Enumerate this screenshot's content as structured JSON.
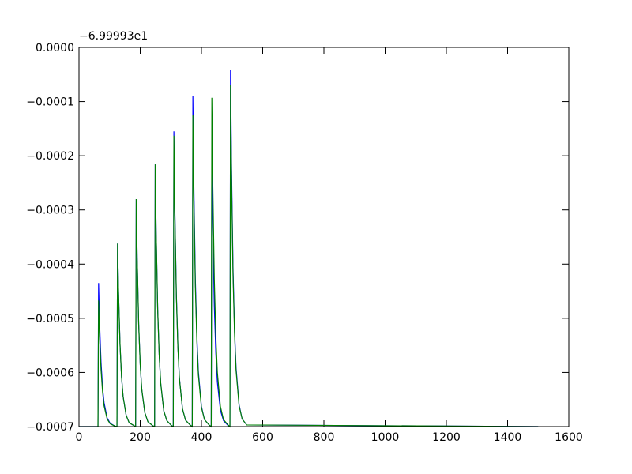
{
  "chart_data": {
    "type": "line",
    "offset_label": "−6.99993e1",
    "x": [
      0,
      62,
      64,
      67,
      72,
      77,
      82,
      92,
      102,
      117,
      124,
      126,
      129,
      134,
      139,
      144,
      154,
      164,
      179,
      185,
      187,
      190,
      195,
      200,
      205,
      215,
      225,
      240,
      247,
      249,
      252,
      257,
      262,
      267,
      277,
      287,
      302,
      308,
      310,
      313,
      318,
      323,
      328,
      338,
      348,
      363,
      370,
      372,
      375,
      380,
      385,
      390,
      400,
      410,
      425,
      432,
      434,
      437,
      442,
      447,
      452,
      462,
      472,
      487,
      493,
      495,
      498,
      503,
      508,
      513,
      523,
      533,
      548,
      1500
    ],
    "series": [
      {
        "color": "#0000ff",
        "values": [
          -0.0007,
          -0.0007,
          -0.000435,
          -0.000504,
          -0.000581,
          -0.000628,
          -0.000656,
          -0.000684,
          -0.000694,
          -0.000699,
          -0.0007,
          -0.000362,
          -0.00045,
          -0.000548,
          -0.000608,
          -0.000644,
          -0.000679,
          -0.000693,
          -0.000698,
          -0.0007,
          -0.00028,
          -0.000389,
          -0.000511,
          -0.000585,
          -0.000631,
          -0.000674,
          -0.000691,
          -0.000698,
          -0.0007,
          -0.000216,
          -0.000341,
          -0.000483,
          -0.000568,
          -0.00062,
          -0.000671,
          -0.000689,
          -0.000698,
          -0.0007,
          -0.000155,
          -0.000296,
          -0.000455,
          -0.000551,
          -0.00061,
          -0.000667,
          -0.000688,
          -0.000697,
          -0.0007,
          -9e-05,
          -0.000248,
          -0.000426,
          -0.000533,
          -0.000599,
          -0.000663,
          -0.000687,
          -0.000697,
          -0.0007,
          -0.000204,
          -0.000332,
          -0.000477,
          -0.000565,
          -0.000618,
          -0.00067,
          -0.000689,
          -0.000698,
          -0.0007,
          -4.1e-05,
          -0.000212,
          -0.000404,
          -0.00052,
          -0.000591,
          -0.00066,
          -0.000686,
          -0.000697,
          -0.0007
        ]
      },
      {
        "color": "#008000",
        "values": [
          -0.0007,
          -0.0007,
          -0.000467,
          -0.000527,
          -0.000595,
          -0.000636,
          -0.000662,
          -0.000686,
          -0.000695,
          -0.000699,
          -0.0007,
          -0.000362,
          -0.00045,
          -0.000548,
          -0.000608,
          -0.000644,
          -0.000679,
          -0.000693,
          -0.000698,
          -0.0007,
          -0.00028,
          -0.000389,
          -0.000511,
          -0.000585,
          -0.000631,
          -0.000674,
          -0.000691,
          -0.000698,
          -0.0007,
          -0.000216,
          -0.000341,
          -0.000483,
          -0.000568,
          -0.00062,
          -0.000671,
          -0.000689,
          -0.000698,
          -0.0007,
          -0.000163,
          -0.000302,
          -0.000459,
          -0.000553,
          -0.000611,
          -0.000667,
          -0.000688,
          -0.000697,
          -0.0007,
          -0.000124,
          -0.000273,
          -0.000441,
          -0.000543,
          -0.000605,
          -0.000665,
          -0.000687,
          -0.000697,
          -0.0007,
          -9.3e-05,
          -0.00025,
          -0.000427,
          -0.000534,
          -0.0006,
          -0.000663,
          -0.000687,
          -0.000697,
          -0.0007,
          -7e-05,
          -0.000233,
          -0.000417,
          -0.000528,
          -0.000596,
          -0.000662,
          -0.000686,
          -0.000697,
          -0.0007
        ]
      }
    ],
    "xlim": [
      0,
      1600
    ],
    "xticks": [
      0,
      200,
      400,
      600,
      800,
      1000,
      1200,
      1400,
      1600
    ],
    "ylim": [
      -0.0007,
      0
    ],
    "yticks": [
      {
        "value": -0.0007,
        "label": "−0.0007"
      },
      {
        "value": -0.0006,
        "label": "−0.0006"
      },
      {
        "value": -0.0005,
        "label": "−0.0005"
      },
      {
        "value": -0.0004,
        "label": "−0.0004"
      },
      {
        "value": -0.0003,
        "label": "−0.0003"
      },
      {
        "value": -0.0002,
        "label": "−0.0002"
      },
      {
        "value": -0.0001,
        "label": "−0.0001"
      },
      {
        "value": 0,
        "label": "0.0000"
      }
    ],
    "grid": false
  }
}
